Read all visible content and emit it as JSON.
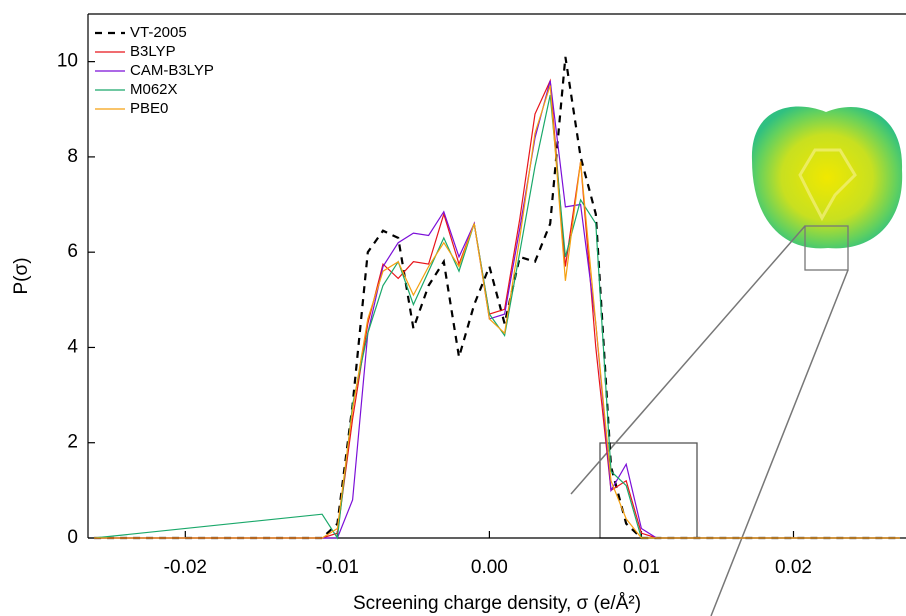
{
  "chart_data": {
    "type": "line",
    "x_label": "Screening charge density, σ (e/Å²)",
    "y_label": "P(σ)",
    "x": [
      -0.026,
      -0.011,
      -0.01,
      -0.009,
      -0.008,
      -0.007,
      -0.006,
      -0.005,
      -0.004,
      -0.003,
      -0.002,
      -0.001,
      0.0,
      0.001,
      0.002,
      0.003,
      0.004,
      0.005,
      0.006,
      0.007,
      0.008,
      0.009,
      0.01,
      0.011,
      0.027
    ],
    "series": [
      {
        "name": "VT-2005",
        "color": "#000000",
        "line_style": "dashed",
        "values": [
          0,
          0,
          0.3,
          2.8,
          6.0,
          6.45,
          6.3,
          4.4,
          5.3,
          5.8,
          3.8,
          4.9,
          5.7,
          4.5,
          5.9,
          5.8,
          6.6,
          10.1,
          8.0,
          6.8,
          1.5,
          0.3,
          0,
          0,
          0
        ]
      },
      {
        "name": "B3LYP",
        "color": "#e8141a",
        "line_style": "solid",
        "values": [
          0,
          0,
          0.1,
          2.5,
          4.5,
          5.75,
          5.45,
          5.8,
          5.75,
          6.8,
          5.75,
          6.6,
          4.7,
          4.8,
          6.7,
          8.9,
          9.6,
          5.7,
          7.9,
          4.0,
          1.0,
          1.2,
          0.1,
          0,
          0
        ]
      },
      {
        "name": "CAM-B3LYP",
        "color": "#7b0fd8",
        "line_style": "solid",
        "values": [
          0,
          0,
          0,
          0.8,
          4.3,
          5.7,
          6.2,
          6.4,
          6.35,
          6.85,
          5.9,
          6.6,
          4.6,
          4.7,
          6.5,
          8.4,
          9.6,
          6.95,
          7.0,
          4.5,
          1.0,
          1.55,
          0.2,
          0,
          0
        ]
      },
      {
        "name": "M062X",
        "color": "#1aa86a",
        "line_style": "solid",
        "values": [
          0,
          0.5,
          0,
          2.8,
          4.3,
          5.3,
          5.8,
          4.9,
          5.6,
          6.3,
          5.6,
          6.6,
          4.7,
          4.25,
          6.0,
          7.8,
          9.3,
          5.9,
          7.1,
          6.6,
          1.4,
          1.1,
          0,
          0,
          0
        ]
      },
      {
        "name": "PBE0",
        "color": "#f5a010",
        "line_style": "solid",
        "values": [
          0,
          0,
          0.2,
          2.7,
          4.6,
          5.6,
          5.8,
          5.1,
          5.7,
          6.2,
          5.7,
          6.6,
          4.6,
          4.3,
          6.3,
          8.5,
          9.5,
          5.4,
          7.9,
          4.5,
          1.2,
          0.4,
          0,
          0,
          0
        ]
      }
    ],
    "xlim": [
      -0.0264,
      0.0274
    ],
    "ylim": [
      0,
      11
    ],
    "xticks": [
      -0.02,
      -0.01,
      {
        "value": 0,
        "label": "0.00"
      },
      0.01,
      0.02
    ],
    "yticks": [
      0,
      2,
      4,
      6,
      8,
      10
    ],
    "legend": "upper-left"
  }
}
